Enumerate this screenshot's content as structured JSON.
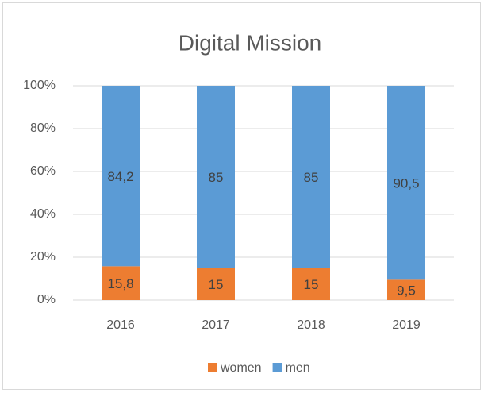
{
  "chart_data": {
    "type": "stacked_bar",
    "title": "Digital Mission",
    "categories": [
      "2016",
      "2017",
      "2018",
      "2019"
    ],
    "series": [
      {
        "name": "women",
        "color": "#ed7d31",
        "values": [
          15.8,
          15,
          15,
          9.5
        ],
        "value_labels": [
          "15,8",
          "15",
          "15",
          "9,5"
        ]
      },
      {
        "name": "men",
        "color": "#5b9bd5",
        "values": [
          84.2,
          85,
          85,
          90.5
        ],
        "value_labels": [
          "84,2",
          "85",
          "85",
          "90,5"
        ]
      }
    ],
    "ylim": [
      0,
      100
    ],
    "yticks": [
      {
        "value": 0,
        "label": "0%"
      },
      {
        "value": 20,
        "label": "20%"
      },
      {
        "value": 40,
        "label": "40%"
      },
      {
        "value": 60,
        "label": "60%"
      },
      {
        "value": 80,
        "label": "80%"
      },
      {
        "value": 100,
        "label": "100%"
      }
    ],
    "grid": true,
    "legend": "bottom"
  }
}
